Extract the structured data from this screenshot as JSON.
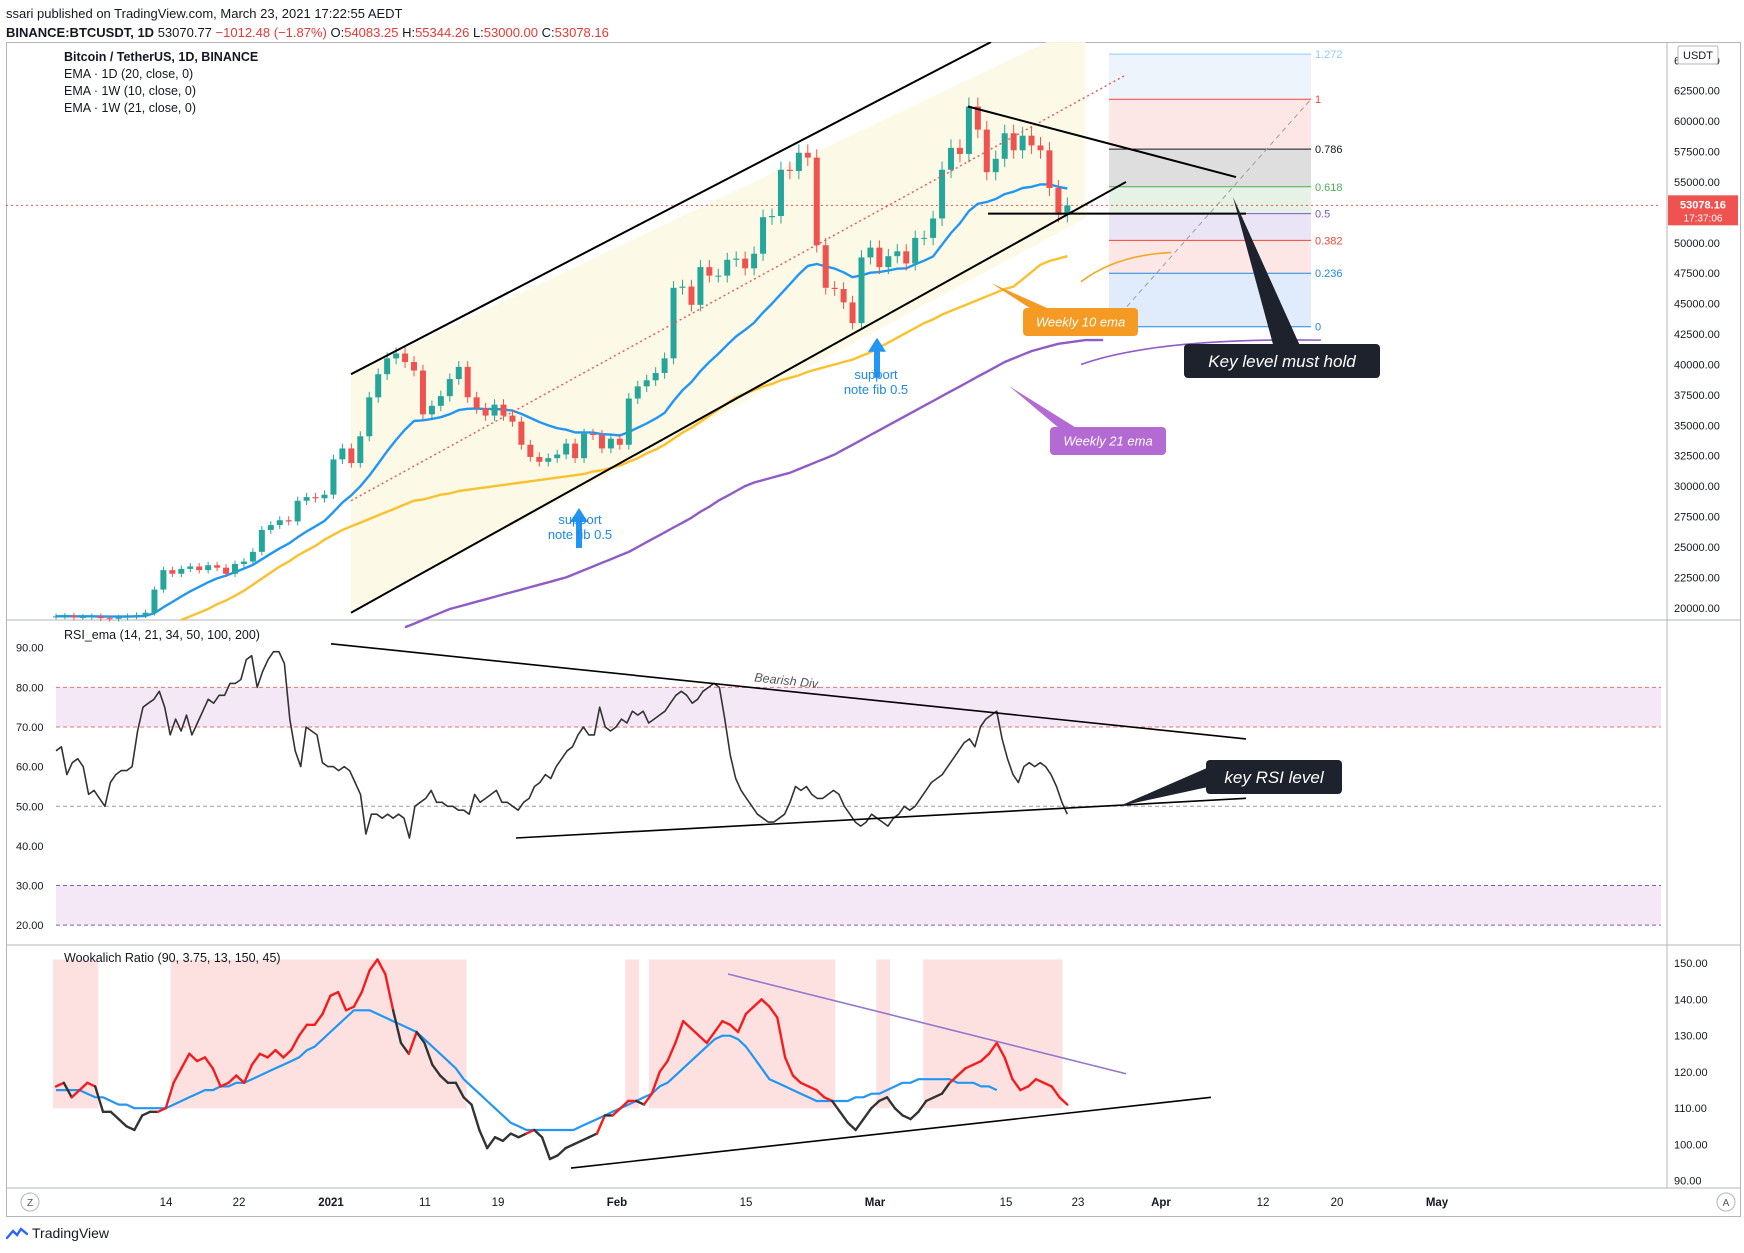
{
  "header": {
    "published_line": "ssari published on TradingView.com, March 23, 2021 17:22:55 AEDT",
    "symbol": "BINANCE:BTCUSDT, 1D",
    "last": "53070.77",
    "change": "−1012.48 (−1.87%)",
    "o_label": "O:",
    "o": "54083.25",
    "h_label": "H:",
    "h": "55344.26",
    "l_label": "L:",
    "l": "53000.00",
    "c_label": "C:",
    "c": "53078.16"
  },
  "price_pane": {
    "title": "Bitcoin / TetherUS, 1D, BINANCE",
    "legend": [
      "EMA · 1D (20, close, 0)",
      "EMA · 1W (10, close, 0)",
      "EMA · 1W (21, close, 0)"
    ],
    "currency": "USDT",
    "last_price": "53078.16",
    "countdown": "17:37:06",
    "fib": [
      {
        "label": "1.272",
        "value": 65500,
        "color": "#90caf9"
      },
      {
        "label": "1",
        "value": 61800,
        "color": "#f44336"
      },
      {
        "label": "0.786",
        "value": 57700,
        "color": "#131722"
      },
      {
        "label": "0.618",
        "value": 54600,
        "color": "#4caf50"
      },
      {
        "label": "0.5",
        "value": 52400,
        "color": "#7e57c2"
      },
      {
        "label": "0.382",
        "value": 50200,
        "color": "#f44336"
      },
      {
        "label": "0.236",
        "value": 47500,
        "color": "#1e88e5"
      },
      {
        "label": "0",
        "value": 43100,
        "color": "#1e88e5"
      }
    ],
    "annotations": {
      "weekly10": "Weekly 10 ema",
      "weekly21": "Weekly 21 ema",
      "keylevel": "Key level must hold",
      "support1_a": "support",
      "support1_b": "note fib 0.5",
      "support2_a": "support",
      "support2_b": "note fib 0.5"
    }
  },
  "rsi_pane": {
    "title": "RSI_ema (14, 21, 34, 50, 100, 200)",
    "bearish_label": "Bearish Div.",
    "key_label": "key RSI level"
  },
  "wook_pane": {
    "title": "Wookalich Ratio (90, 3.75, 13, 150, 45)"
  },
  "x_axis": {
    "ticks": [
      "14",
      "22",
      "2021",
      "11",
      "19",
      "Feb",
      "15",
      "Mar",
      "15",
      "23",
      "Apr",
      "12",
      "20",
      "May"
    ],
    "left_btn": "Z",
    "right_btn": "A"
  },
  "footer": {
    "brand": "TradingView"
  },
  "colors": {
    "up": "#26a69a",
    "down": "#ef5350",
    "ema20": "#2196f3",
    "ema10w": "#fbc02d",
    "ema21w": "#8e5cc7",
    "orange_box": "#f59a23",
    "purple_box": "#b36ad2"
  },
  "chart_data": [
    {
      "type": "candlestick",
      "title": "Bitcoin / TetherUS, 1D, BINANCE",
      "ylim": [
        19000,
        66500
      ],
      "y_ticks": [
        20000,
        22500,
        25000,
        27500,
        30000,
        32500,
        35000,
        37500,
        40000,
        42500,
        45000,
        47500,
        50000,
        52500,
        55000,
        57500,
        60000,
        62500,
        65000
      ],
      "closes": [
        19300,
        19350,
        19200,
        19250,
        19300,
        19150,
        19100,
        19200,
        19300,
        19400,
        19600,
        21500,
        23100,
        22800,
        23200,
        23400,
        23100,
        23500,
        23300,
        22800,
        23600,
        23800,
        24600,
        26400,
        26800,
        27200,
        27100,
        28800,
        29100,
        29000,
        29300,
        32200,
        33100,
        31900,
        34100,
        37300,
        39200,
        40500,
        40900,
        40200,
        39500,
        35900,
        36600,
        37400,
        38800,
        39800,
        37300,
        36400,
        35800,
        36700,
        35800,
        35300,
        33400,
        32400,
        32000,
        32300,
        32600,
        33500,
        32300,
        34300,
        34200,
        33100,
        33900,
        33400,
        37200,
        38200,
        38700,
        39300,
        40500,
        46300,
        46400,
        44900,
        48000,
        47300,
        47300,
        48600,
        48700,
        47900,
        49100,
        52100,
        52200,
        56000,
        55900,
        57400,
        57000,
        49800,
        46300,
        46200,
        45100,
        43400,
        48800,
        49600,
        48000,
        48900,
        49300,
        48300,
        50400,
        50400,
        52000,
        56000,
        57800,
        57300,
        61200,
        59300,
        55800,
        56900,
        59000,
        57600,
        58800,
        58000,
        57600,
        54500,
        52300,
        53078
      ],
      "ema20_1d": [
        19300,
        19310,
        19300,
        19300,
        19300,
        19290,
        19280,
        19280,
        19290,
        19300,
        19340,
        19570,
        20050,
        20480,
        20930,
        21360,
        21730,
        22100,
        22420,
        22650,
        22940,
        23220,
        23530,
        23990,
        24450,
        24890,
        25280,
        25800,
        26270,
        26700,
        27140,
        27870,
        28650,
        29250,
        29990,
        30870,
        31850,
        32860,
        33800,
        34650,
        35350,
        35410,
        35530,
        35670,
        35910,
        36250,
        36360,
        36380,
        36330,
        36350,
        36300,
        36210,
        35940,
        35610,
        35270,
        34990,
        34760,
        34640,
        34420,
        34410,
        34400,
        34270,
        34240,
        34160,
        34450,
        34800,
        35160,
        35550,
        36020,
        37000,
        37880,
        38550,
        39450,
        40200,
        40870,
        41620,
        42310,
        42840,
        43430,
        44260,
        45000,
        45800,
        46600,
        47400,
        48100,
        48260,
        48060,
        47880,
        47570,
        47170,
        47330,
        47540,
        47590,
        47720,
        47870,
        47900,
        48230,
        48530,
        48880,
        49840,
        50800,
        51600,
        52600,
        53200,
        53350,
        53600,
        54000,
        54200,
        54500,
        54600,
        54800,
        54800,
        54600,
        54450
      ],
      "ema10_1w": [
        null,
        null,
        null,
        null,
        null,
        null,
        null,
        null,
        null,
        null,
        null,
        null,
        null,
        null,
        19000,
        19300,
        19600,
        19900,
        20300,
        20600,
        21000,
        21400,
        21900,
        22400,
        22900,
        23400,
        23800,
        24300,
        24700,
        25100,
        25600,
        26000,
        26400,
        26700,
        27000,
        27300,
        27600,
        27900,
        28200,
        28500,
        28800,
        28900,
        29100,
        29300,
        29400,
        29600,
        29700,
        29800,
        29900,
        30000,
        30100,
        30200,
        30300,
        30400,
        30500,
        30600,
        30700,
        30800,
        30900,
        31000,
        31200,
        31300,
        31500,
        31700,
        32000,
        32300,
        32700,
        33000,
        33400,
        33900,
        34400,
        34800,
        35300,
        35800,
        36300,
        36800,
        37300,
        37600,
        37900,
        38200,
        38400,
        38700,
        38900,
        39100,
        39400,
        39600,
        39800,
        40000,
        40200,
        40400,
        40700,
        41000,
        41400,
        41800,
        42200,
        42600,
        43000,
        43400,
        43700,
        44100,
        44400,
        44700,
        45000,
        45300,
        45600,
        45900,
        46200,
        46400,
        47000,
        47600,
        48200,
        48500,
        48700,
        48900
      ],
      "ema21_1w": [
        null,
        null,
        null,
        null,
        null,
        null,
        null,
        null,
        null,
        null,
        null,
        null,
        null,
        null,
        null,
        null,
        null,
        null,
        null,
        null,
        null,
        null,
        null,
        null,
        null,
        null,
        null,
        null,
        null,
        null,
        null,
        null,
        null,
        null,
        null,
        null,
        null,
        null,
        null,
        18400,
        18700,
        19000,
        19300,
        19600,
        19900,
        20100,
        20300,
        20500,
        20700,
        20900,
        21100,
        21300,
        21500,
        21700,
        21900,
        22100,
        22300,
        22500,
        22800,
        23100,
        23400,
        23700,
        24000,
        24300,
        24600,
        25000,
        25400,
        25800,
        26200,
        26600,
        27000,
        27400,
        27900,
        28300,
        28800,
        29200,
        29600,
        30000,
        30300,
        30500,
        30700,
        30900,
        31100,
        31400,
        31700,
        32000,
        32300,
        32600,
        33000,
        33400,
        33800,
        34200,
        34600,
        35000,
        35400,
        35800,
        36200,
        36600,
        37000,
        37400,
        37800,
        38200,
        38600,
        39000,
        39400,
        39800,
        40200,
        40500,
        40800,
        41100,
        41300,
        41500,
        41700,
        41800,
        41900,
        42000,
        42000,
        42000
      ]
    },
    {
      "type": "line",
      "title": "RSI_ema (14, 21, 34, 50, 100, 200)",
      "ylim": [
        15,
        97
      ],
      "y_ticks": [
        20,
        30,
        40,
        50,
        60,
        70,
        80,
        90
      ],
      "values": [
        64,
        65,
        58,
        61,
        62,
        60,
        53,
        54,
        52,
        50,
        56,
        58,
        59,
        59,
        60,
        69,
        75,
        76,
        77,
        79,
        75,
        68,
        72,
        69,
        73,
        68,
        71,
        74,
        77,
        76,
        78,
        78,
        81,
        81,
        82,
        87,
        88,
        80,
        84,
        87,
        89,
        89,
        86,
        72,
        64,
        60,
        70,
        69,
        68,
        61,
        60,
        60,
        59,
        60,
        59,
        56,
        53,
        43,
        48,
        48,
        47,
        48,
        47,
        48,
        47,
        42,
        50,
        51,
        52,
        54,
        51,
        51,
        50,
        50,
        49,
        49,
        48,
        53,
        51,
        52,
        53,
        54,
        51,
        51,
        50,
        49,
        51,
        52,
        55,
        56,
        58,
        57,
        60,
        62,
        64,
        65,
        68,
        70,
        68,
        68,
        75,
        70,
        69,
        70,
        72,
        71,
        74,
        73,
        74,
        71,
        72,
        73,
        74,
        76,
        78,
        79,
        78,
        76,
        77,
        79,
        80,
        81,
        80,
        72,
        63,
        57,
        54,
        52,
        50,
        48,
        47,
        46,
        46,
        47,
        48,
        51,
        55,
        54,
        55,
        53,
        52,
        52,
        53,
        54,
        53,
        50,
        48,
        46,
        45,
        46,
        48,
        47,
        46,
        45,
        47,
        48,
        50,
        49,
        50,
        52,
        54,
        56,
        57,
        58,
        60,
        62,
        64,
        66,
        67,
        65,
        70,
        72,
        73,
        74,
        67,
        62,
        58,
        56,
        60,
        61,
        60,
        61,
        60,
        58,
        55,
        51,
        48
      ]
    },
    {
      "type": "line",
      "title": "Wookalich Ratio (90, 3.75, 13, 150, 45)",
      "ylim": [
        88,
        155
      ],
      "y_ticks": [
        90,
        100,
        110,
        120,
        130,
        140,
        150
      ],
      "ratio": [
        116,
        117,
        113,
        115,
        117,
        116,
        109,
        109,
        107,
        105,
        104,
        108,
        109,
        109,
        110,
        117,
        121,
        125,
        123,
        124,
        121,
        116,
        117,
        119,
        117,
        122,
        125,
        124,
        126,
        124,
        126,
        130,
        133,
        133,
        136,
        141,
        142,
        137,
        138,
        142,
        148,
        151,
        147,
        137,
        128,
        125,
        131,
        128,
        122,
        119,
        117,
        117,
        113,
        111,
        104,
        99,
        102,
        101,
        103,
        102,
        103,
        104,
        102,
        96,
        97,
        99,
        100,
        101,
        102,
        103,
        108,
        108,
        110,
        112,
        112,
        111,
        114,
        120,
        123,
        128,
        134,
        132,
        130,
        128,
        131,
        134,
        133,
        131,
        136,
        138,
        140,
        138,
        135,
        124,
        119,
        117,
        116,
        115,
        113,
        112,
        109,
        106,
        104,
        107,
        110,
        112,
        113,
        110,
        108,
        107,
        109,
        112,
        113,
        114,
        117,
        119,
        121,
        122,
        123,
        125,
        128,
        124,
        118,
        115,
        116,
        118,
        117,
        116,
        113,
        111
      ],
      "avg": [
        115,
        115,
        115,
        115,
        114,
        113,
        113,
        112,
        111,
        111,
        110,
        110,
        110,
        110,
        110,
        111,
        112,
        113,
        114,
        115,
        115,
        116,
        116,
        117,
        117,
        118,
        119,
        120,
        121,
        122,
        123,
        124,
        126,
        127,
        129,
        131,
        133,
        135,
        137,
        137,
        137,
        136,
        135,
        134,
        133,
        132,
        131,
        129,
        127,
        125,
        123,
        121,
        118,
        116,
        114,
        112,
        110,
        108,
        106,
        105,
        104,
        104,
        104,
        104,
        104,
        104,
        104,
        105,
        106,
        107,
        108,
        109,
        110,
        111,
        112,
        113,
        114,
        116,
        117,
        119,
        121,
        123,
        125,
        127,
        129,
        130,
        130,
        129,
        127,
        124,
        121,
        118,
        117,
        116,
        115,
        114,
        113,
        112,
        112,
        112,
        112,
        112,
        113,
        113,
        114,
        114,
        115,
        116,
        117,
        117,
        118,
        118,
        118,
        118,
        118,
        117,
        117,
        117,
        116,
        116,
        115
      ]
    }
  ]
}
